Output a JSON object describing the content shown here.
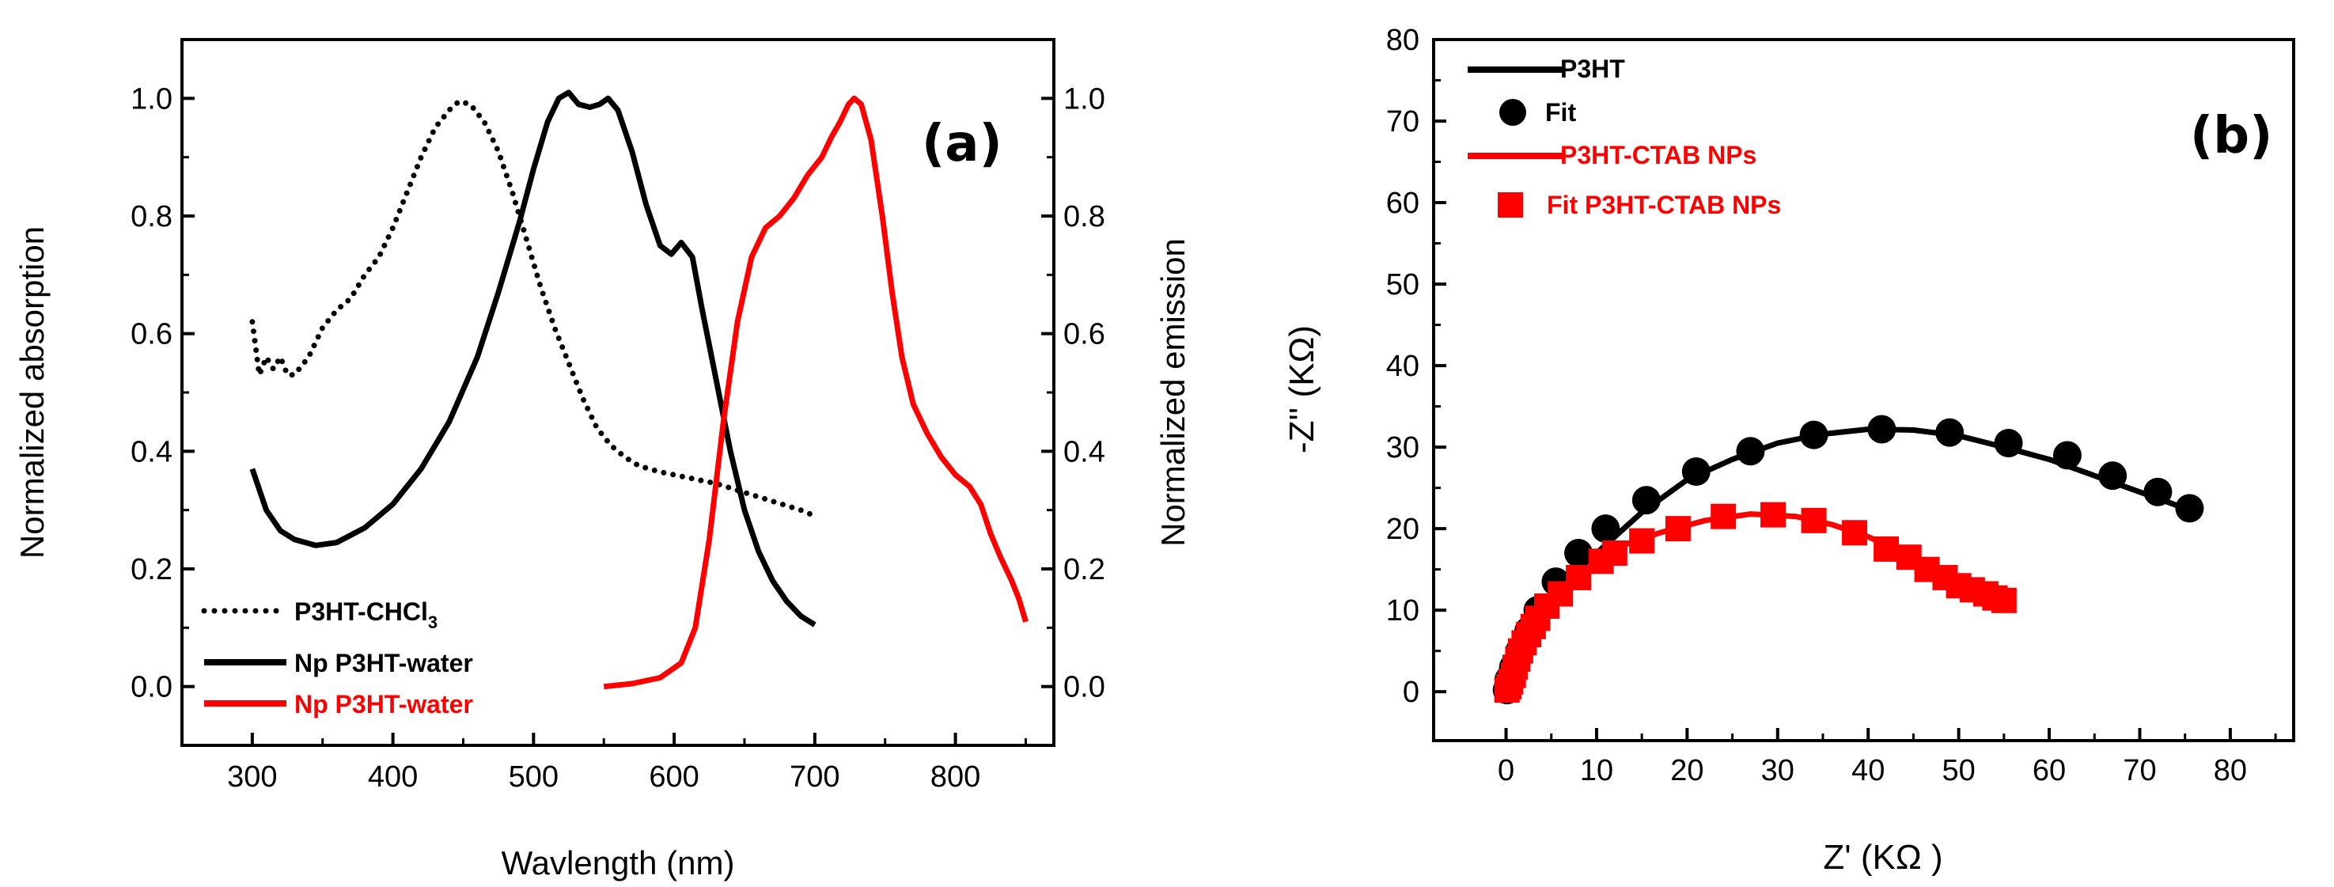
{
  "chart_data": [
    {
      "type": "line",
      "panel_label": "(a)",
      "xlabel": "Wavlength (nm)",
      "ylabel": "Normalized absorption",
      "y2label": "Normalized emission",
      "xlim": [
        250,
        870
      ],
      "ylim": [
        -0.1,
        1.1
      ],
      "y2lim": [
        -0.1,
        1.1
      ],
      "xticks": [
        "300",
        "400",
        "500",
        "600",
        "700",
        "800"
      ],
      "yticks": [
        "0.0",
        "0.2",
        "0.4",
        "0.6",
        "0.8",
        "1.0"
      ],
      "y2ticks": [
        "0.0",
        "0.2",
        "0.4",
        "0.6",
        "0.8",
        "1.0"
      ],
      "colors": {
        "black": "#000000",
        "red": "#ff0000"
      },
      "series": [
        {
          "name": "P3HT-CHCl3",
          "legend_main": "P3HT-CHCl",
          "legend_sub": "3",
          "style": "dotted",
          "color": "#000000",
          "axis": "left",
          "points": [
            [
              300,
              0.62
            ],
            [
              305,
              0.53
            ],
            [
              310,
              0.56
            ],
            [
              315,
              0.54
            ],
            [
              320,
              0.56
            ],
            [
              325,
              0.53
            ],
            [
              330,
              0.53
            ],
            [
              340,
              0.56
            ],
            [
              350,
              0.61
            ],
            [
              360,
              0.64
            ],
            [
              370,
              0.66
            ],
            [
              380,
              0.7
            ],
            [
              390,
              0.73
            ],
            [
              400,
              0.78
            ],
            [
              410,
              0.84
            ],
            [
              420,
              0.9
            ],
            [
              430,
              0.95
            ],
            [
              440,
              0.98
            ],
            [
              447,
              0.995
            ],
            [
              455,
              0.99
            ],
            [
              465,
              0.96
            ],
            [
              475,
              0.91
            ],
            [
              485,
              0.84
            ],
            [
              495,
              0.76
            ],
            [
              505,
              0.68
            ],
            [
              515,
              0.61
            ],
            [
              525,
              0.55
            ],
            [
              535,
              0.49
            ],
            [
              545,
              0.44
            ],
            [
              555,
              0.41
            ],
            [
              565,
              0.39
            ],
            [
              575,
              0.375
            ],
            [
              590,
              0.365
            ],
            [
              610,
              0.355
            ],
            [
              630,
              0.345
            ],
            [
              650,
              0.33
            ],
            [
              670,
              0.315
            ],
            [
              690,
              0.3
            ],
            [
              700,
              0.29
            ]
          ]
        },
        {
          "name": "Np P3HT-water",
          "legend_main": "Np P3HT-water",
          "style": "solid",
          "color": "#000000",
          "axis": "left",
          "points": [
            [
              300,
              0.37
            ],
            [
              310,
              0.3
            ],
            [
              320,
              0.265
            ],
            [
              330,
              0.25
            ],
            [
              345,
              0.24
            ],
            [
              360,
              0.245
            ],
            [
              380,
              0.27
            ],
            [
              400,
              0.31
            ],
            [
              420,
              0.37
            ],
            [
              440,
              0.45
            ],
            [
              460,
              0.56
            ],
            [
              475,
              0.67
            ],
            [
              490,
              0.79
            ],
            [
              500,
              0.88
            ],
            [
              510,
              0.96
            ],
            [
              518,
              1.0
            ],
            [
              525,
              1.01
            ],
            [
              532,
              0.99
            ],
            [
              540,
              0.985
            ],
            [
              547,
              0.99
            ],
            [
              553,
              1.0
            ],
            [
              560,
              0.98
            ],
            [
              570,
              0.91
            ],
            [
              580,
              0.82
            ],
            [
              590,
              0.75
            ],
            [
              598,
              0.735
            ],
            [
              605,
              0.755
            ],
            [
              613,
              0.73
            ],
            [
              620,
              0.64
            ],
            [
              630,
              0.52
            ],
            [
              640,
              0.4
            ],
            [
              650,
              0.3
            ],
            [
              660,
              0.23
            ],
            [
              670,
              0.18
            ],
            [
              680,
              0.145
            ],
            [
              690,
              0.12
            ],
            [
              700,
              0.105
            ]
          ]
        },
        {
          "name": "Np P3HT-water",
          "legend_main": "Np P3HT-water",
          "style": "solid",
          "color": "#ff0000",
          "axis": "right",
          "points": [
            [
              550,
              0.0
            ],
            [
              570,
              0.005
            ],
            [
              590,
              0.015
            ],
            [
              605,
              0.04
            ],
            [
              615,
              0.1
            ],
            [
              625,
              0.25
            ],
            [
              635,
              0.45
            ],
            [
              645,
              0.62
            ],
            [
              655,
              0.73
            ],
            [
              665,
              0.78
            ],
            [
              675,
              0.8
            ],
            [
              685,
              0.83
            ],
            [
              695,
              0.87
            ],
            [
              705,
              0.9
            ],
            [
              712,
              0.935
            ],
            [
              718,
              0.96
            ],
            [
              724,
              0.99
            ],
            [
              728,
              1.0
            ],
            [
              733,
              0.99
            ],
            [
              740,
              0.93
            ],
            [
              748,
              0.8
            ],
            [
              755,
              0.67
            ],
            [
              762,
              0.56
            ],
            [
              770,
              0.48
            ],
            [
              780,
              0.43
            ],
            [
              790,
              0.39
            ],
            [
              800,
              0.36
            ],
            [
              810,
              0.34
            ],
            [
              818,
              0.31
            ],
            [
              825,
              0.26
            ],
            [
              832,
              0.22
            ],
            [
              840,
              0.18
            ],
            [
              845,
              0.15
            ],
            [
              850,
              0.11
            ]
          ]
        }
      ]
    },
    {
      "type": "scatter",
      "panel_label": "(b)",
      "xlabel": "Z' (KΩ )",
      "ylabel": "-Z'' (KΩ)",
      "xlim": [
        -8,
        87
      ],
      "ylim": [
        -6,
        80
      ],
      "xticks": [
        "0",
        "10",
        "20",
        "30",
        "40",
        "50",
        "60",
        "70",
        "80"
      ],
      "yticks": [
        "0",
        "10",
        "20",
        "30",
        "40",
        "50",
        "60",
        "70",
        "80"
      ],
      "series": [
        {
          "name": "P3HT",
          "kind": "line",
          "color": "#000000",
          "points": [
            [
              0,
              0
            ],
            [
              0.3,
              2
            ],
            [
              0.8,
              4
            ],
            [
              1.5,
              6
            ],
            [
              2.5,
              8
            ],
            [
              4,
              10
            ],
            [
              5.5,
              12
            ],
            [
              8,
              15
            ],
            [
              11,
              18
            ],
            [
              15,
              22
            ],
            [
              20,
              26
            ],
            [
              25,
              28.5
            ],
            [
              30,
              30.5
            ],
            [
              35,
              31.6
            ],
            [
              40,
              32.2
            ],
            [
              45,
              32.1
            ],
            [
              50,
              31.4
            ],
            [
              55,
              30
            ],
            [
              60,
              28.5
            ],
            [
              65,
              26.5
            ],
            [
              70,
              24.5
            ],
            [
              75,
              22.5
            ]
          ]
        },
        {
          "name": "Fit",
          "kind": "circle",
          "color": "#000000",
          "points": [
            [
              0.1,
              0.2
            ],
            [
              0.3,
              1.5
            ],
            [
              0.8,
              3
            ],
            [
              1.5,
              5
            ],
            [
              2.5,
              7.5
            ],
            [
              3.5,
              10
            ],
            [
              5.5,
              13.5
            ],
            [
              8,
              17
            ],
            [
              11,
              20
            ],
            [
              15.5,
              23.5
            ],
            [
              21,
              27
            ],
            [
              27,
              29.5
            ],
            [
              34,
              31.5
            ],
            [
              41.5,
              32.2
            ],
            [
              49,
              31.8
            ],
            [
              55.5,
              30.5
            ],
            [
              62,
              29
            ],
            [
              67,
              26.5
            ],
            [
              72,
              24.5
            ],
            [
              75.5,
              22.5
            ]
          ]
        },
        {
          "name": "P3HT-CTAB NPs",
          "kind": "line",
          "color": "#ff0000",
          "points": [
            [
              0,
              0
            ],
            [
              0.2,
              1
            ],
            [
              0.5,
              2
            ],
            [
              1,
              3.5
            ],
            [
              2,
              5.5
            ],
            [
              3.5,
              8
            ],
            [
              5,
              10
            ],
            [
              7,
              12.5
            ],
            [
              10,
              15.5
            ],
            [
              13,
              18
            ],
            [
              17,
              19.5
            ],
            [
              22,
              21
            ],
            [
              27,
              21.8
            ],
            [
              32,
              21.5
            ],
            [
              36,
              20.5
            ],
            [
              40,
              19
            ],
            [
              44,
              17
            ],
            [
              48,
              15
            ],
            [
              51,
              13.5
            ],
            [
              54,
              12
            ],
            [
              56,
              11.2
            ]
          ]
        },
        {
          "name": "Fit  P3HT-CTAB NPs",
          "kind": "square",
          "color": "#ff0000",
          "points": [
            [
              0.1,
              0.2
            ],
            [
              0.3,
              0.6
            ],
            [
              0.5,
              1.2
            ],
            [
              0.8,
              2
            ],
            [
              1,
              3
            ],
            [
              1.3,
              4
            ],
            [
              1.6,
              5
            ],
            [
              2,
              6
            ],
            [
              2.5,
              7
            ],
            [
              3,
              8
            ],
            [
              3.5,
              9
            ],
            [
              4.5,
              10.5
            ],
            [
              6,
              12
            ],
            [
              8,
              14
            ],
            [
              10.5,
              16
            ],
            [
              12,
              17
            ],
            [
              15,
              18.5
            ],
            [
              19,
              20
            ],
            [
              24,
              21.5
            ],
            [
              29.5,
              21.7
            ],
            [
              34,
              21
            ],
            [
              38.5,
              19.5
            ],
            [
              42,
              17.5
            ],
            [
              44.5,
              16.5
            ],
            [
              46.5,
              15
            ],
            [
              48.5,
              14
            ],
            [
              50,
              13
            ],
            [
              51.5,
              12.5
            ],
            [
              53,
              12
            ],
            [
              54,
              11.5
            ],
            [
              55,
              11.2
            ]
          ]
        }
      ]
    }
  ]
}
